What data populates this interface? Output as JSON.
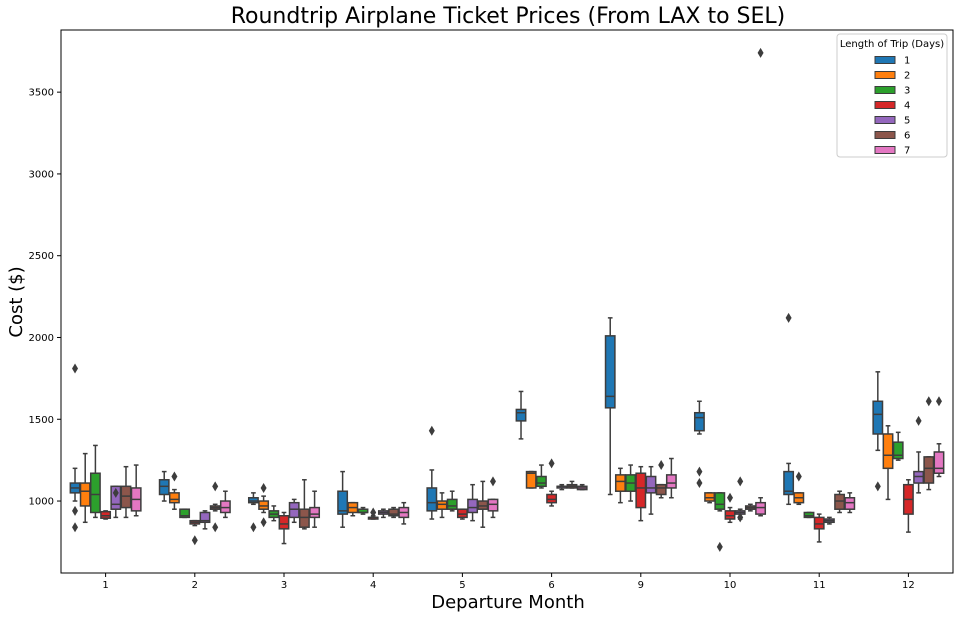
{
  "chart_data": {
    "type": "box",
    "title": "Roundtrip Airplane Ticket Prices (From LAX to SEL)",
    "xlabel": "Departure Month",
    "ylabel": "Cost ($)",
    "ylim": [
      560,
      3880
    ],
    "yticks": [
      1000,
      1500,
      2000,
      2500,
      3000,
      3500
    ],
    "grid": false,
    "categories": [
      "1",
      "2",
      "3",
      "4",
      "5",
      "6",
      "9",
      "10",
      "11",
      "12"
    ],
    "legend": {
      "title": "Length of Trip (Days)",
      "position": "top-right"
    },
    "series": [
      {
        "name": "1",
        "color": "#1f77b4",
        "boxes": [
          {
            "min": 1000,
            "q1": 1050,
            "median": 1080,
            "q3": 1110,
            "max": 1200,
            "outliers": [
              1810,
              940,
              840
            ]
          },
          {
            "min": 1000,
            "q1": 1040,
            "median": 1090,
            "q3": 1130,
            "max": 1180,
            "outliers": []
          },
          {
            "min": 980,
            "q1": 990,
            "median": 1000,
            "q3": 1020,
            "max": 1050,
            "outliers": [
              840
            ]
          },
          {
            "min": 840,
            "q1": 920,
            "median": 940,
            "q3": 1060,
            "max": 1180,
            "outliers": []
          },
          {
            "min": 890,
            "q1": 940,
            "median": 990,
            "q3": 1080,
            "max": 1190,
            "outliers": [
              1430
            ]
          },
          {
            "min": 1380,
            "q1": 1490,
            "median": 1540,
            "q3": 1560,
            "max": 1670,
            "outliers": []
          },
          {
            "min": 1040,
            "q1": 1570,
            "median": 1640,
            "q3": 2010,
            "max": 2120,
            "outliers": []
          },
          {
            "min": 1410,
            "q1": 1430,
            "median": 1510,
            "q3": 1540,
            "max": 1610,
            "outliers": [
              1180,
              1110
            ]
          },
          {
            "min": 980,
            "q1": 1040,
            "median": 1060,
            "q3": 1180,
            "max": 1230,
            "outliers": [
              2120
            ]
          },
          {
            "min": 1310,
            "q1": 1410,
            "median": 1530,
            "q3": 1610,
            "max": 1790,
            "outliers": [
              1090
            ]
          }
        ]
      },
      {
        "name": "2",
        "color": "#ff7f0e",
        "boxes": [
          {
            "min": 870,
            "q1": 970,
            "median": 1060,
            "q3": 1110,
            "max": 1290,
            "outliers": []
          },
          {
            "min": 950,
            "q1": 990,
            "median": 1010,
            "q3": 1050,
            "max": 1070,
            "outliers": [
              1150
            ]
          },
          {
            "min": 930,
            "q1": 950,
            "median": 970,
            "q3": 1000,
            "max": 1030,
            "outliers": [
              1080,
              870
            ]
          },
          {
            "min": 910,
            "q1": 930,
            "median": 960,
            "q3": 990,
            "max": 990,
            "outliers": []
          },
          {
            "min": 900,
            "q1": 950,
            "median": 980,
            "q3": 1000,
            "max": 1050,
            "outliers": []
          },
          {
            "min": 1080,
            "q1": 1080,
            "median": 1170,
            "q3": 1180,
            "max": 1180,
            "outliers": []
          },
          {
            "min": 990,
            "q1": 1060,
            "median": 1120,
            "q3": 1160,
            "max": 1200,
            "outliers": []
          },
          {
            "min": 990,
            "q1": 1000,
            "median": 1020,
            "q3": 1050,
            "max": 1050,
            "outliers": []
          },
          {
            "min": 980,
            "q1": 990,
            "median": 1020,
            "q3": 1050,
            "max": 1050,
            "outliers": [
              1150
            ]
          },
          {
            "min": 1010,
            "q1": 1200,
            "median": 1280,
            "q3": 1410,
            "max": 1460,
            "outliers": []
          }
        ]
      },
      {
        "name": "3",
        "color": "#2ca02c",
        "boxes": [
          {
            "min": 900,
            "q1": 930,
            "median": 1040,
            "q3": 1170,
            "max": 1340,
            "outliers": []
          },
          {
            "min": 900,
            "q1": 900,
            "median": 910,
            "q3": 950,
            "max": 950,
            "outliers": []
          },
          {
            "min": 880,
            "q1": 900,
            "median": 920,
            "q3": 940,
            "max": 970,
            "outliers": []
          },
          {
            "min": 920,
            "q1": 930,
            "median": 930,
            "q3": 950,
            "max": 960,
            "outliers": []
          },
          {
            "min": 940,
            "q1": 950,
            "median": 970,
            "q3": 1010,
            "max": 1060,
            "outliers": []
          },
          {
            "min": 1080,
            "q1": 1090,
            "median": 1110,
            "q3": 1150,
            "max": 1220,
            "outliers": []
          },
          {
            "min": 1000,
            "q1": 1060,
            "median": 1110,
            "q3": 1160,
            "max": 1220,
            "outliers": []
          },
          {
            "min": 940,
            "q1": 950,
            "median": 980,
            "q3": 1050,
            "max": 1050,
            "outliers": [
              720
            ]
          },
          {
            "min": 900,
            "q1": 900,
            "median": 910,
            "q3": 930,
            "max": 930,
            "outliers": []
          },
          {
            "min": 1250,
            "q1": 1260,
            "median": 1280,
            "q3": 1360,
            "max": 1420,
            "outliers": []
          }
        ]
      },
      {
        "name": "4",
        "color": "#d62728",
        "boxes": [
          {
            "min": 890,
            "q1": 895,
            "median": 910,
            "q3": 935,
            "max": 940,
            "outliers": []
          },
          {
            "min": 850,
            "q1": 860,
            "median": 870,
            "q3": 880,
            "max": 880,
            "outliers": [
              760
            ]
          },
          {
            "min": 740,
            "q1": 830,
            "median": 860,
            "q3": 910,
            "max": 930,
            "outliers": []
          },
          {
            "min": 890,
            "q1": 890,
            "median": 900,
            "q3": 900,
            "max": 910,
            "outliers": [
              930
            ]
          },
          {
            "min": 890,
            "q1": 900,
            "median": 920,
            "q3": 950,
            "max": 950,
            "outliers": []
          },
          {
            "min": 970,
            "q1": 990,
            "median": 1010,
            "q3": 1040,
            "max": 1060,
            "outliers": [
              1230
            ]
          },
          {
            "min": 880,
            "q1": 960,
            "median": 1080,
            "q3": 1170,
            "max": 1210,
            "outliers": []
          },
          {
            "min": 870,
            "q1": 890,
            "median": 910,
            "q3": 940,
            "max": 960,
            "outliers": [
              1020
            ]
          },
          {
            "min": 750,
            "q1": 830,
            "median": 860,
            "q3": 900,
            "max": 920,
            "outliers": []
          },
          {
            "min": 810,
            "q1": 920,
            "median": 1010,
            "q3": 1100,
            "max": 1130,
            "outliers": []
          }
        ]
      },
      {
        "name": "5",
        "color": "#9467bd",
        "boxes": [
          {
            "min": 900,
            "q1": 950,
            "median": 980,
            "q3": 1090,
            "max": 1090,
            "outliers": [
              1050
            ]
          },
          {
            "min": 830,
            "q1": 870,
            "median": 880,
            "q3": 930,
            "max": 940,
            "outliers": []
          },
          {
            "min": 870,
            "q1": 900,
            "median": 950,
            "q3": 990,
            "max": 1010,
            "outliers": []
          },
          {
            "min": 900,
            "q1": 920,
            "median": 930,
            "q3": 940,
            "max": 950,
            "outliers": []
          },
          {
            "min": 880,
            "q1": 930,
            "median": 960,
            "q3": 1010,
            "max": 1100,
            "outliers": []
          },
          {
            "min": 1070,
            "q1": 1080,
            "median": 1090,
            "q3": 1090,
            "max": 1100,
            "outliers": []
          },
          {
            "min": 920,
            "q1": 1050,
            "median": 1080,
            "q3": 1150,
            "max": 1210,
            "outliers": []
          },
          {
            "min": 890,
            "q1": 920,
            "median": 930,
            "q3": 940,
            "max": 950,
            "outliers": [
              1120,
              900
            ]
          },
          {
            "min": 860,
            "q1": 870,
            "median": 880,
            "q3": 890,
            "max": 900,
            "outliers": []
          },
          {
            "min": 1050,
            "q1": 1110,
            "median": 1150,
            "q3": 1180,
            "max": 1300,
            "outliers": [
              1490
            ]
          }
        ]
      },
      {
        "name": "6",
        "color": "#8c564b",
        "boxes": [
          {
            "min": 900,
            "q1": 960,
            "median": 1030,
            "q3": 1090,
            "max": 1210,
            "outliers": []
          },
          {
            "min": 940,
            "q1": 950,
            "median": 960,
            "q3": 970,
            "max": 980,
            "outliers": [
              1090,
              840
            ]
          },
          {
            "min": 830,
            "q1": 840,
            "median": 900,
            "q3": 950,
            "max": 1130,
            "outliers": []
          },
          {
            "min": 900,
            "q1": 910,
            "median": 920,
            "q3": 950,
            "max": 960,
            "outliers": []
          },
          {
            "min": 840,
            "q1": 950,
            "median": 970,
            "q3": 1000,
            "max": 1120,
            "outliers": []
          },
          {
            "min": 1080,
            "q1": 1080,
            "median": 1090,
            "q3": 1100,
            "max": 1120,
            "outliers": []
          },
          {
            "min": 1020,
            "q1": 1040,
            "median": 1080,
            "q3": 1100,
            "max": 1100,
            "outliers": [
              1220
            ]
          },
          {
            "min": 940,
            "q1": 950,
            "median": 960,
            "q3": 970,
            "max": 980,
            "outliers": []
          },
          {
            "min": 930,
            "q1": 950,
            "median": 1000,
            "q3": 1040,
            "max": 1060,
            "outliers": []
          },
          {
            "min": 1070,
            "q1": 1110,
            "median": 1200,
            "q3": 1270,
            "max": 1270,
            "outliers": [
              1610
            ]
          }
        ]
      },
      {
        "name": "7",
        "color": "#e377c2",
        "boxes": [
          {
            "min": 910,
            "q1": 940,
            "median": 1010,
            "q3": 1080,
            "max": 1220,
            "outliers": []
          },
          {
            "min": 900,
            "q1": 930,
            "median": 960,
            "q3": 1000,
            "max": 1060,
            "outliers": []
          },
          {
            "min": 840,
            "q1": 900,
            "median": 920,
            "q3": 960,
            "max": 1060,
            "outliers": []
          },
          {
            "min": 860,
            "q1": 900,
            "median": 930,
            "q3": 960,
            "max": 990,
            "outliers": []
          },
          {
            "min": 900,
            "q1": 940,
            "median": 980,
            "q3": 1010,
            "max": 1010,
            "outliers": [
              1120
            ]
          },
          {
            "min": 1070,
            "q1": 1070,
            "median": 1080,
            "q3": 1090,
            "max": 1100,
            "outliers": []
          },
          {
            "min": 1020,
            "q1": 1080,
            "median": 1110,
            "q3": 1160,
            "max": 1260,
            "outliers": []
          },
          {
            "min": 910,
            "q1": 920,
            "median": 960,
            "q3": 990,
            "max": 1020,
            "outliers": [
              3740
            ]
          },
          {
            "min": 930,
            "q1": 950,
            "median": 990,
            "q3": 1020,
            "max": 1050,
            "outliers": []
          },
          {
            "min": 1150,
            "q1": 1170,
            "median": 1200,
            "q3": 1300,
            "max": 1350,
            "outliers": [
              1610
            ]
          }
        ]
      }
    ]
  }
}
